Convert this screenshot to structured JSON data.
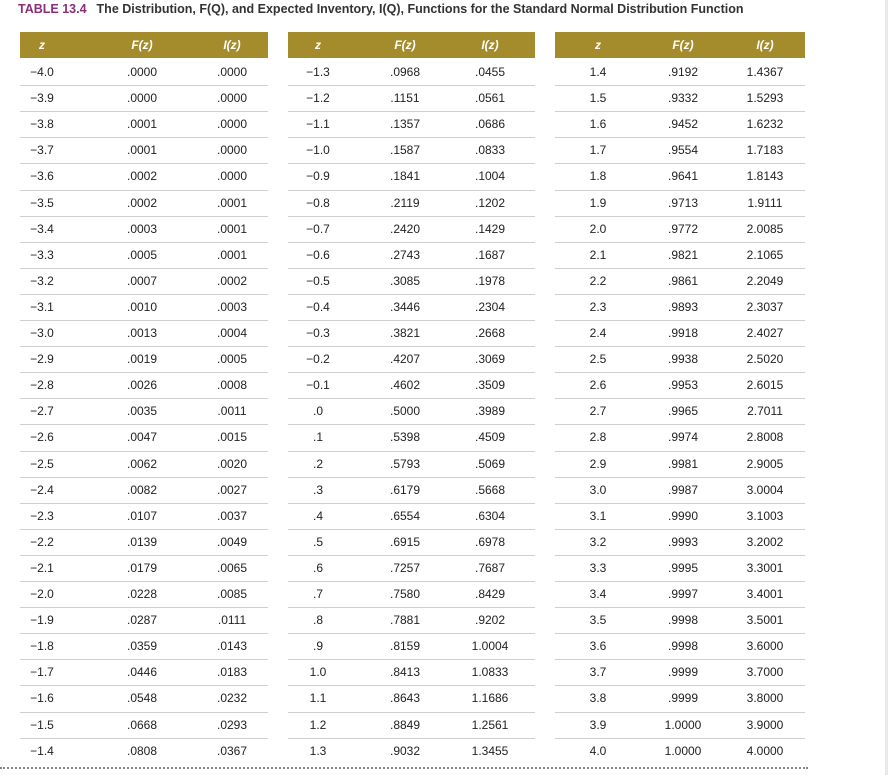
{
  "table_label": "TABLE 13.4",
  "title": "The Distribution, F(Q), and Expected Inventory, I(Q), Functions for the Standard Normal Distribution Function",
  "panels": [
    {
      "columns": [
        "z",
        "F(z)",
        "I(z)"
      ],
      "rows": [
        [
          "−4.0",
          ".0000",
          ".0000"
        ],
        [
          "−3.9",
          ".0000",
          ".0000"
        ],
        [
          "−3.8",
          ".0001",
          ".0000"
        ],
        [
          "−3.7",
          ".0001",
          ".0000"
        ],
        [
          "−3.6",
          ".0002",
          ".0000"
        ],
        [
          "−3.5",
          ".0002",
          ".0001"
        ],
        [
          "−3.4",
          ".0003",
          ".0001"
        ],
        [
          "−3.3",
          ".0005",
          ".0001"
        ],
        [
          "−3.2",
          ".0007",
          ".0002"
        ],
        [
          "−3.1",
          ".0010",
          ".0003"
        ],
        [
          "−3.0",
          ".0013",
          ".0004"
        ],
        [
          "−2.9",
          ".0019",
          ".0005"
        ],
        [
          "−2.8",
          ".0026",
          ".0008"
        ],
        [
          "−2.7",
          ".0035",
          ".0011"
        ],
        [
          "−2.6",
          ".0047",
          ".0015"
        ],
        [
          "−2.5",
          ".0062",
          ".0020"
        ],
        [
          "−2.4",
          ".0082",
          ".0027"
        ],
        [
          "−2.3",
          ".0107",
          ".0037"
        ],
        [
          "−2.2",
          ".0139",
          ".0049"
        ],
        [
          "−2.1",
          ".0179",
          ".0065"
        ],
        [
          "−2.0",
          ".0228",
          ".0085"
        ],
        [
          "−1.9",
          ".0287",
          ".0111"
        ],
        [
          "−1.8",
          ".0359",
          ".0143"
        ],
        [
          "−1.7",
          ".0446",
          ".0183"
        ],
        [
          "−1.6",
          ".0548",
          ".0232"
        ],
        [
          "−1.5",
          ".0668",
          ".0293"
        ],
        [
          "−1.4",
          ".0808",
          ".0367"
        ]
      ]
    },
    {
      "columns": [
        "z",
        "F(z)",
        "I(z)"
      ],
      "rows": [
        [
          "−1.3",
          ".0968",
          ".0455"
        ],
        [
          "−1.2",
          ".1151",
          ".0561"
        ],
        [
          "−1.1",
          ".1357",
          ".0686"
        ],
        [
          "−1.0",
          ".1587",
          ".0833"
        ],
        [
          "−0.9",
          ".1841",
          ".1004"
        ],
        [
          "−0.8",
          ".2119",
          ".1202"
        ],
        [
          "−0.7",
          ".2420",
          ".1429"
        ],
        [
          "−0.6",
          ".2743",
          ".1687"
        ],
        [
          "−0.5",
          ".3085",
          ".1978"
        ],
        [
          "−0.4",
          ".3446",
          ".2304"
        ],
        [
          "−0.3",
          ".3821",
          ".2668"
        ],
        [
          "−0.2",
          ".4207",
          ".3069"
        ],
        [
          "−0.1",
          ".4602",
          ".3509"
        ],
        [
          ".0",
          ".5000",
          ".3989"
        ],
        [
          ".1",
          ".5398",
          ".4509"
        ],
        [
          ".2",
          ".5793",
          ".5069"
        ],
        [
          ".3",
          ".6179",
          ".5668"
        ],
        [
          ".4",
          ".6554",
          ".6304"
        ],
        [
          ".5",
          ".6915",
          ".6978"
        ],
        [
          ".6",
          ".7257",
          ".7687"
        ],
        [
          ".7",
          ".7580",
          ".8429"
        ],
        [
          ".8",
          ".7881",
          ".9202"
        ],
        [
          ".9",
          ".8159",
          "1.0004"
        ],
        [
          "1.0",
          ".8413",
          "1.0833"
        ],
        [
          "1.1",
          ".8643",
          "1.1686"
        ],
        [
          "1.2",
          ".8849",
          "1.2561"
        ],
        [
          "1.3",
          ".9032",
          "1.3455"
        ]
      ]
    },
    {
      "columns": [
        "z",
        "F(z)",
        "I(z)"
      ],
      "rows": [
        [
          "1.4",
          ".9192",
          "1.4367"
        ],
        [
          "1.5",
          ".9332",
          "1.5293"
        ],
        [
          "1.6",
          ".9452",
          "1.6232"
        ],
        [
          "1.7",
          ".9554",
          "1.7183"
        ],
        [
          "1.8",
          ".9641",
          "1.8143"
        ],
        [
          "1.9",
          ".9713",
          "1.9111"
        ],
        [
          "2.0",
          ".9772",
          "2.0085"
        ],
        [
          "2.1",
          ".9821",
          "2.1065"
        ],
        [
          "2.2",
          ".9861",
          "2.2049"
        ],
        [
          "2.3",
          ".9893",
          "2.3037"
        ],
        [
          "2.4",
          ".9918",
          "2.4027"
        ],
        [
          "2.5",
          ".9938",
          "2.5020"
        ],
        [
          "2.6",
          ".9953",
          "2.6015"
        ],
        [
          "2.7",
          ".9965",
          "2.7011"
        ],
        [
          "2.8",
          ".9974",
          "2.8008"
        ],
        [
          "2.9",
          ".9981",
          "2.9005"
        ],
        [
          "3.0",
          ".9987",
          "3.0004"
        ],
        [
          "3.1",
          ".9990",
          "3.1003"
        ],
        [
          "3.2",
          ".9993",
          "3.2002"
        ],
        [
          "3.3",
          ".9995",
          "3.3001"
        ],
        [
          "3.4",
          ".9997",
          "3.4001"
        ],
        [
          "3.5",
          ".9998",
          "3.5001"
        ],
        [
          "3.6",
          ".9998",
          "3.6000"
        ],
        [
          "3.7",
          ".9999",
          "3.7000"
        ],
        [
          "3.8",
          ".9999",
          "3.8000"
        ],
        [
          "3.9",
          "1.0000",
          "3.9000"
        ],
        [
          "4.0",
          "1.0000",
          "4.0000"
        ]
      ]
    }
  ]
}
